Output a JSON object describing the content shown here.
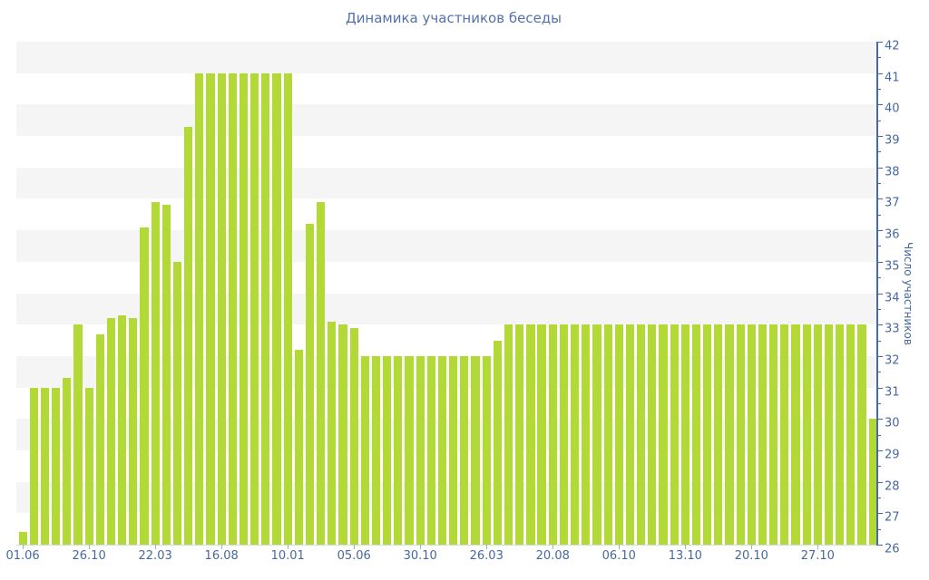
{
  "title": "Динамика участников беседы",
  "y_axis_title": "Число участников",
  "colors": {
    "bar": "#b2d936",
    "axis_line": "#4769aa",
    "tick_label": "#47689f",
    "title": "#5571a8",
    "stripe": "#f5f5f5",
    "background": "#ffffff"
  },
  "chart_data": {
    "type": "bar",
    "title": "Динамика участников беседы",
    "xlabel": "",
    "ylabel": "Число участников",
    "ylim": [
      26,
      42
    ],
    "y_tick_step": 1,
    "y_minor_tick_step": 0.5,
    "y_axis_side": "right",
    "legend": "none",
    "grid": "alternating horizontal bands",
    "x_tick_labels": [
      "01.06",
      "26.10",
      "22.03",
      "16.08",
      "10.01",
      "05.06",
      "30.10",
      "26.03",
      "20.08",
      "06.10",
      "13.10",
      "20.10",
      "27.10"
    ],
    "x_label_every_n_bars": 6,
    "values": [
      26.4,
      31,
      31,
      31,
      31.3,
      33,
      31,
      32.7,
      33.2,
      33.3,
      33.2,
      36.1,
      36.9,
      36.8,
      35,
      39.3,
      41,
      41,
      41,
      41,
      41,
      41,
      41,
      41,
      41,
      32.2,
      36.2,
      36.9,
      33.1,
      33,
      32.9,
      32,
      32,
      32,
      32,
      32,
      32,
      32,
      32,
      32,
      32,
      32,
      32,
      32.5,
      33,
      33,
      33,
      33,
      33,
      33,
      33,
      33,
      33,
      33,
      33,
      33,
      33,
      33,
      33,
      33,
      33,
      33,
      33,
      33,
      33,
      33,
      33,
      33,
      33,
      33,
      33,
      33,
      33,
      33,
      33,
      33,
      33,
      30
    ]
  }
}
